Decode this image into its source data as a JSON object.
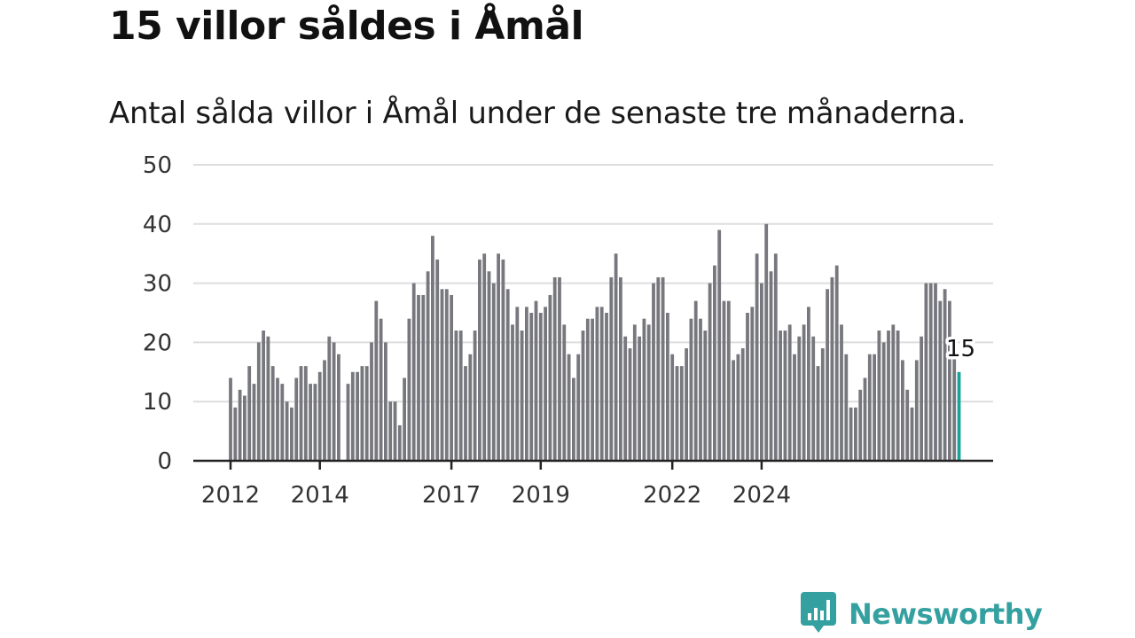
{
  "title": "15 villor såldes i Åmål",
  "subtitle": "Antal sålda villor i Åmål under de senaste tre månaderna.",
  "brand": {
    "name": "Newsworthy",
    "color": "#35a0a0",
    "icon": "bar-chart-speech-bubble-icon"
  },
  "colors": {
    "bar": "#77777e",
    "highlight": "#1aa39a",
    "grid": "#dddddd",
    "axis": "#222222"
  },
  "chart_data": {
    "type": "bar",
    "ylim": [
      0,
      50
    ],
    "yticks": [
      0,
      10,
      20,
      30,
      40,
      50
    ],
    "grid": true,
    "xtick_labels": [
      "2012",
      "2014",
      "2017",
      "2019",
      "2022",
      "2024"
    ],
    "xtick_bar_index": [
      0,
      19,
      47,
      66,
      94,
      113
    ],
    "highlight_label": "15",
    "values": [
      14,
      9,
      12,
      11,
      16,
      13,
      20,
      22,
      21,
      16,
      14,
      13,
      10,
      9,
      14,
      16,
      16,
      13,
      13,
      15,
      17,
      21,
      20,
      18,
      0,
      13,
      15,
      15,
      16,
      16,
      20,
      27,
      24,
      20,
      10,
      10,
      6,
      14,
      24,
      30,
      28,
      28,
      32,
      38,
      34,
      29,
      29,
      28,
      22,
      22,
      16,
      18,
      22,
      34,
      35,
      32,
      30,
      35,
      34,
      29,
      23,
      26,
      22,
      26,
      25,
      27,
      25,
      26,
      28,
      31,
      31,
      23,
      18,
      14,
      18,
      22,
      24,
      24,
      26,
      26,
      25,
      31,
      35,
      31,
      21,
      19,
      23,
      21,
      24,
      23,
      30,
      31,
      31,
      25,
      18,
      16,
      16,
      19,
      24,
      27,
      24,
      22,
      30,
      33,
      39,
      27,
      27,
      17,
      18,
      19,
      25,
      26,
      35,
      30,
      40,
      32,
      35,
      22,
      22,
      23,
      18,
      21,
      23,
      26,
      21,
      16,
      19,
      29,
      31,
      33,
      23,
      18,
      9,
      9,
      12,
      14,
      18,
      18,
      22,
      20,
      22,
      23,
      22,
      17,
      12,
      9,
      17,
      21,
      30,
      30,
      30,
      27,
      29,
      27,
      20,
      15
    ]
  }
}
